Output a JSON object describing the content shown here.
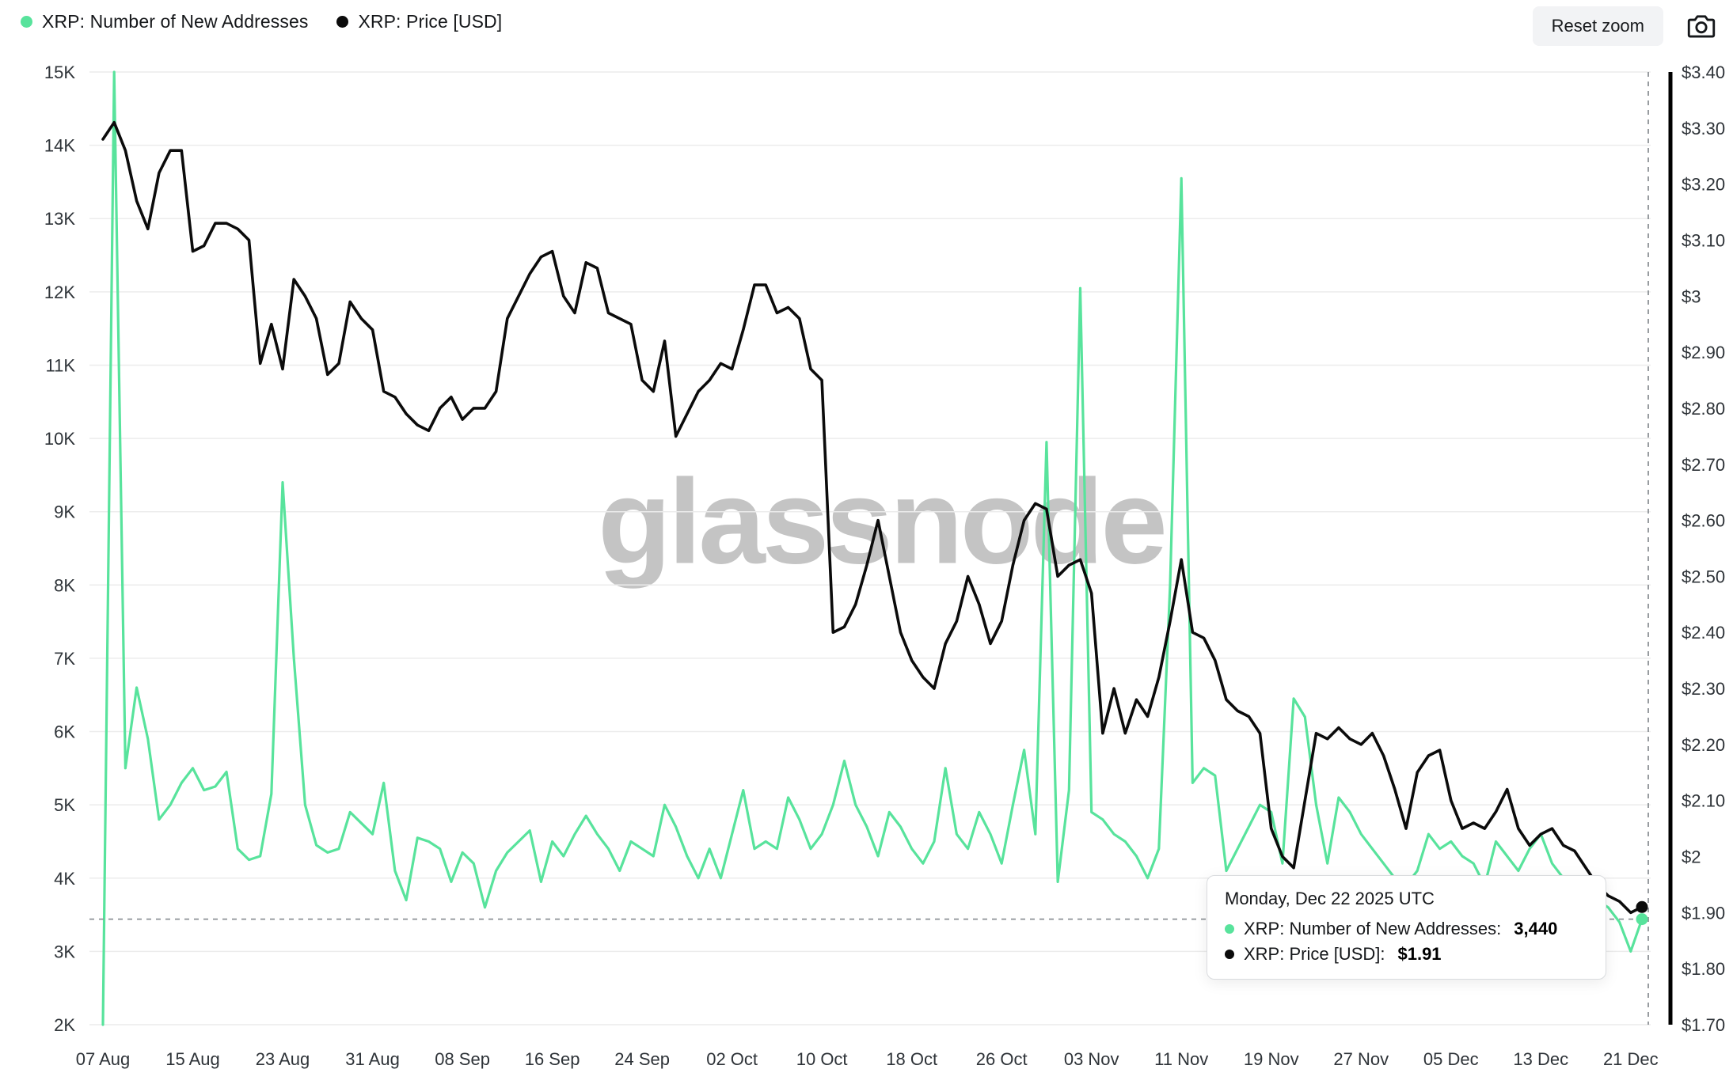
{
  "legend": {
    "items": [
      {
        "label": "XRP: Number of New Addresses",
        "color": "#58e39c"
      },
      {
        "label": "XRP: Price [USD]",
        "color": "#0b0b0b"
      }
    ]
  },
  "toolbar": {
    "reset_zoom_label": "Reset zoom"
  },
  "watermark": "glassnode",
  "tooltip": {
    "title": "Monday, Dec 22 2025 UTC",
    "rows": [
      {
        "label": "XRP: Number of New Addresses:",
        "value": "3,440",
        "color": "#58e39c"
      },
      {
        "label": "XRP: Price [USD]:",
        "value": "$1.91",
        "color": "#0b0b0b"
      }
    ]
  },
  "colors": {
    "addresses_line": "#58e39c",
    "price_line": "#0b0b0b",
    "gridline": "#ececec",
    "crosshair": "#8c9196",
    "axis_spine": "#000000"
  },
  "chart_data": {
    "type": "line",
    "title": "",
    "num_days": 138,
    "left_axis": {
      "min": 2000,
      "max": 15000,
      "ticks": [
        "2K",
        "3K",
        "4K",
        "5K",
        "6K",
        "7K",
        "8K",
        "9K",
        "10K",
        "11K",
        "12K",
        "13K",
        "14K",
        "15K"
      ]
    },
    "right_axis": {
      "min": 1.7,
      "max": 3.4,
      "ticks": [
        "$1.70",
        "$1.80",
        "$1.90",
        "$2",
        "$2.10",
        "$2.20",
        "$2.30",
        "$2.40",
        "$2.50",
        "$2.60",
        "$2.70",
        "$2.80",
        "$2.90",
        "$3",
        "$3.10",
        "$3.20",
        "$3.30",
        "$3.40"
      ]
    },
    "x_ticks": [
      {
        "label": "07 Aug",
        "day": 0
      },
      {
        "label": "15 Aug",
        "day": 8
      },
      {
        "label": "23 Aug",
        "day": 16
      },
      {
        "label": "31 Aug",
        "day": 24
      },
      {
        "label": "08 Sep",
        "day": 32
      },
      {
        "label": "16 Sep",
        "day": 40
      },
      {
        "label": "24 Sep",
        "day": 48
      },
      {
        "label": "02 Oct",
        "day": 56
      },
      {
        "label": "10 Oct",
        "day": 64
      },
      {
        "label": "18 Oct",
        "day": 72
      },
      {
        "label": "26 Oct",
        "day": 80
      },
      {
        "label": "03 Nov",
        "day": 88
      },
      {
        "label": "11 Nov",
        "day": 96
      },
      {
        "label": "19 Nov",
        "day": 104
      },
      {
        "label": "27 Nov",
        "day": 112
      },
      {
        "label": "05 Dec",
        "day": 120
      },
      {
        "label": "13 Dec",
        "day": 128
      },
      {
        "label": "21 Dec",
        "day": 136
      }
    ],
    "series": [
      {
        "name": "XRP: Number of New Addresses",
        "axis": "left",
        "color": "#58e39c",
        "values": [
          2000,
          15000,
          5500,
          6600,
          5900,
          4800,
          5000,
          5300,
          5500,
          5200,
          5250,
          5450,
          4400,
          4250,
          4300,
          5150,
          9400,
          7000,
          5000,
          4450,
          4350,
          4400,
          4900,
          4750,
          4600,
          5300,
          4100,
          3700,
          4550,
          4500,
          4400,
          3950,
          4350,
          4200,
          3600,
          4100,
          4350,
          4500,
          4650,
          3950,
          4500,
          4300,
          4600,
          4850,
          4600,
          4400,
          4100,
          4500,
          4400,
          4300,
          5000,
          4700,
          4300,
          4000,
          4400,
          4000,
          4600,
          5200,
          4400,
          4500,
          4400,
          5100,
          4800,
          4400,
          4600,
          5000,
          5600,
          5000,
          4700,
          4300,
          4900,
          4700,
          4400,
          4200,
          4500,
          5500,
          4600,
          4400,
          4900,
          4600,
          4200,
          5000,
          5750,
          4600,
          9950,
          3950,
          5200,
          12050,
          4900,
          4800,
          4600,
          4500,
          4300,
          4000,
          4400,
          8000,
          13550,
          5300,
          5500,
          5400,
          4100,
          4400,
          4700,
          5000,
          4900,
          4200,
          6450,
          6200,
          5000,
          4200,
          5100,
          4900,
          4600,
          4400,
          4200,
          4000,
          3900,
          4100,
          4600,
          4400,
          4500,
          4300,
          4200,
          3900,
          4500,
          4300,
          4100,
          4400,
          4600,
          4200,
          4000,
          3900,
          3800,
          3700,
          3600,
          3400,
          3000,
          3440
        ]
      },
      {
        "name": "XRP: Price [USD]",
        "axis": "right",
        "color": "#0b0b0b",
        "values": [
          3.28,
          3.31,
          3.26,
          3.17,
          3.12,
          3.22,
          3.26,
          3.26,
          3.08,
          3.09,
          3.13,
          3.13,
          3.12,
          3.1,
          2.88,
          2.95,
          2.87,
          3.03,
          3.0,
          2.96,
          2.86,
          2.88,
          2.99,
          2.96,
          2.94,
          2.83,
          2.82,
          2.79,
          2.77,
          2.76,
          2.8,
          2.82,
          2.78,
          2.8,
          2.8,
          2.83,
          2.96,
          3.0,
          3.04,
          3.07,
          3.08,
          3.0,
          2.97,
          3.06,
          3.05,
          2.97,
          2.96,
          2.95,
          2.85,
          2.83,
          2.92,
          2.75,
          2.79,
          2.83,
          2.85,
          2.88,
          2.87,
          2.94,
          3.02,
          3.02,
          2.97,
          2.98,
          2.96,
          2.87,
          2.85,
          2.4,
          2.41,
          2.45,
          2.52,
          2.6,
          2.5,
          2.4,
          2.35,
          2.32,
          2.3,
          2.38,
          2.42,
          2.5,
          2.45,
          2.38,
          2.42,
          2.52,
          2.6,
          2.63,
          2.62,
          2.5,
          2.52,
          2.53,
          2.47,
          2.22,
          2.3,
          2.22,
          2.28,
          2.25,
          2.32,
          2.42,
          2.53,
          2.4,
          2.39,
          2.35,
          2.28,
          2.26,
          2.25,
          2.22,
          2.05,
          2.0,
          1.98,
          2.1,
          2.22,
          2.21,
          2.23,
          2.21,
          2.2,
          2.22,
          2.18,
          2.12,
          2.05,
          2.15,
          2.18,
          2.19,
          2.1,
          2.05,
          2.06,
          2.05,
          2.08,
          2.12,
          2.05,
          2.02,
          2.04,
          2.05,
          2.02,
          2.01,
          1.98,
          1.95,
          1.93,
          1.92,
          1.9,
          1.91
        ]
      }
    ],
    "crosshair": {
      "date_label": "Monday, Dec 22 2025 UTC",
      "addresses_value": 3440,
      "price_value": 1.91
    },
    "grid": "horizontal-only",
    "legend_position": "top-left"
  }
}
